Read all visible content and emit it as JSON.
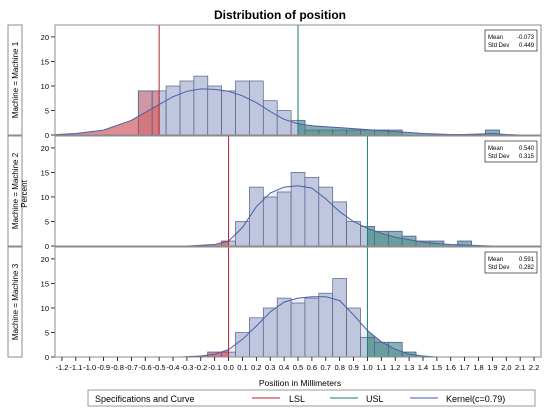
{
  "chart_data": {
    "type": "bar",
    "title": "Distribution of position",
    "xlabel": "Position in Millimeters",
    "ylabel": "Percent",
    "xlim": [
      -1.25,
      2.25
    ],
    "ylim": [
      0,
      21
    ],
    "xticks": [
      "-1.2",
      "-1.1",
      "-1.0",
      "-0.9",
      "-0.8",
      "-0.7",
      "-0.6",
      "-0.5",
      "-0.4",
      "-0.3",
      "-0.2",
      "-0.1",
      "0.0",
      "0.1",
      "0.2",
      "0.3",
      "0.4",
      "0.5",
      "0.6",
      "0.7",
      "0.8",
      "0.9",
      "1.0",
      "1.1",
      "1.2",
      "1.3",
      "1.4",
      "1.5",
      "1.6",
      "1.7",
      "1.8",
      "1.9",
      "2.0",
      "2.1",
      "2.2"
    ],
    "yticks": [
      "0",
      "5",
      "10",
      "15",
      "20"
    ],
    "bin_width": 0.1,
    "spec_limits": {
      "lsl": 0,
      "usl": 1
    },
    "panels": [
      {
        "label": "Machine = Machine 1",
        "lsl": -0.5,
        "usl": 0.5,
        "stats": {
          "mean_label": "Mean",
          "mean": "-0.073",
          "sd_label": "Std Dev",
          "sd": "0.449"
        },
        "bin_centers": [
          -0.6,
          -0.5,
          -0.4,
          -0.3,
          -0.2,
          -0.1,
          0.0,
          0.1,
          0.2,
          0.3,
          0.4,
          0.5,
          0.6,
          0.7,
          0.8,
          0.9,
          1.0,
          1.1,
          1.2,
          1.3,
          1.4,
          1.5,
          1.6,
          1.7,
          1.8,
          1.9
        ],
        "values": [
          9,
          9,
          10,
          11,
          12,
          10,
          9,
          11,
          11,
          7,
          5,
          3,
          1,
          1,
          1,
          1,
          1,
          1,
          1,
          0,
          0,
          0,
          0,
          0,
          0,
          1
        ],
        "kernel": [
          [
            -1.3,
            0
          ],
          [
            -1.1,
            0.3
          ],
          [
            -0.9,
            1
          ],
          [
            -0.7,
            3
          ],
          [
            -0.5,
            6.2
          ],
          [
            -0.4,
            7.8
          ],
          [
            -0.3,
            8.9
          ],
          [
            -0.2,
            9.4
          ],
          [
            -0.1,
            9.3
          ],
          [
            0.0,
            8.9
          ],
          [
            0.1,
            8.0
          ],
          [
            0.2,
            6.6
          ],
          [
            0.3,
            4.8
          ],
          [
            0.4,
            3.2
          ],
          [
            0.5,
            2.3
          ],
          [
            0.6,
            1.9
          ],
          [
            0.7,
            1.7
          ],
          [
            0.8,
            1.5
          ],
          [
            0.9,
            1.3
          ],
          [
            1.0,
            1.1
          ],
          [
            1.1,
            0.9
          ],
          [
            1.2,
            0.7
          ],
          [
            1.3,
            0.5
          ],
          [
            1.4,
            0.3
          ],
          [
            1.5,
            0.2
          ],
          [
            1.6,
            0.1
          ],
          [
            1.7,
            0.1
          ],
          [
            1.8,
            0.2
          ],
          [
            1.9,
            0.3
          ],
          [
            2.0,
            0.1
          ],
          [
            2.1,
            0
          ]
        ]
      },
      {
        "label": "Machine = Machine 2",
        "lsl": 0,
        "usl": 1,
        "stats": {
          "mean_label": "Mean",
          "mean": "0.540",
          "sd_label": "Std Dev",
          "sd": "0.315"
        },
        "bin_centers": [
          0.0,
          0.1,
          0.2,
          0.3,
          0.4,
          0.5,
          0.6,
          0.7,
          0.8,
          0.9,
          1.0,
          1.1,
          1.2,
          1.3,
          1.4,
          1.5,
          1.6,
          1.7
        ],
        "values": [
          1,
          5,
          12,
          10,
          11,
          15,
          14,
          12,
          9,
          5,
          4,
          3,
          3,
          2,
          1,
          1,
          0,
          1
        ],
        "kernel": [
          [
            -0.3,
            0
          ],
          [
            -0.1,
            0.3
          ],
          [
            0.0,
            1
          ],
          [
            0.1,
            3.8
          ],
          [
            0.2,
            8
          ],
          [
            0.3,
            10.8
          ],
          [
            0.4,
            12
          ],
          [
            0.5,
            12.3
          ],
          [
            0.6,
            11.8
          ],
          [
            0.7,
            9.6
          ],
          [
            0.8,
            7
          ],
          [
            0.9,
            5
          ],
          [
            1.0,
            3.6
          ],
          [
            1.1,
            2.6
          ],
          [
            1.2,
            1.8
          ],
          [
            1.3,
            1.3
          ],
          [
            1.4,
            0.8
          ],
          [
            1.5,
            0.5
          ],
          [
            1.6,
            0.3
          ],
          [
            1.7,
            0.2
          ],
          [
            1.8,
            0.1
          ],
          [
            1.9,
            0
          ]
        ]
      },
      {
        "label": "Machine = Machine 3",
        "lsl": 0,
        "usl": 1,
        "stats": {
          "mean_label": "Mean",
          "mean": "0.591",
          "sd_label": "Std Dev",
          "sd": "0.282"
        },
        "bin_centers": [
          -0.1,
          0.0,
          0.1,
          0.2,
          0.3,
          0.4,
          0.5,
          0.6,
          0.7,
          0.8,
          0.9,
          1.0,
          1.1,
          1.2,
          1.3
        ],
        "values": [
          1,
          1,
          5,
          8,
          10,
          12,
          11,
          12,
          13,
          16,
          10,
          4,
          3,
          3,
          1
        ],
        "kernel": [
          [
            -0.35,
            0
          ],
          [
            -0.2,
            0.2
          ],
          [
            -0.1,
            0.6
          ],
          [
            0.0,
            1.5
          ],
          [
            0.1,
            3.6
          ],
          [
            0.2,
            6.3
          ],
          [
            0.3,
            9.2
          ],
          [
            0.4,
            11.2
          ],
          [
            0.5,
            12
          ],
          [
            0.6,
            12.3
          ],
          [
            0.7,
            12.3
          ],
          [
            0.8,
            11.5
          ],
          [
            0.9,
            8.6
          ],
          [
            1.0,
            5.4
          ],
          [
            1.1,
            3.1
          ],
          [
            1.2,
            1.6
          ],
          [
            1.3,
            0.6
          ],
          [
            1.4,
            0.2
          ],
          [
            1.5,
            0
          ]
        ]
      }
    ],
    "legend": {
      "title": "Specifications and Curve",
      "items": [
        {
          "label": "LSL",
          "color": "#b5202a"
        },
        {
          "label": "USL",
          "color": "#1f7a75"
        },
        {
          "label": "Kernel(c=0.79)",
          "color": "#4a5ea8"
        }
      ]
    },
    "colors": {
      "bar_fill": "#b6bfd9",
      "bar_stroke": "#56608a",
      "lsl_fill": "#d96e72",
      "usl_fill": "#5d9a95",
      "kernel": "#4a5ea8",
      "panel_border": "#8c8c8c"
    }
  }
}
